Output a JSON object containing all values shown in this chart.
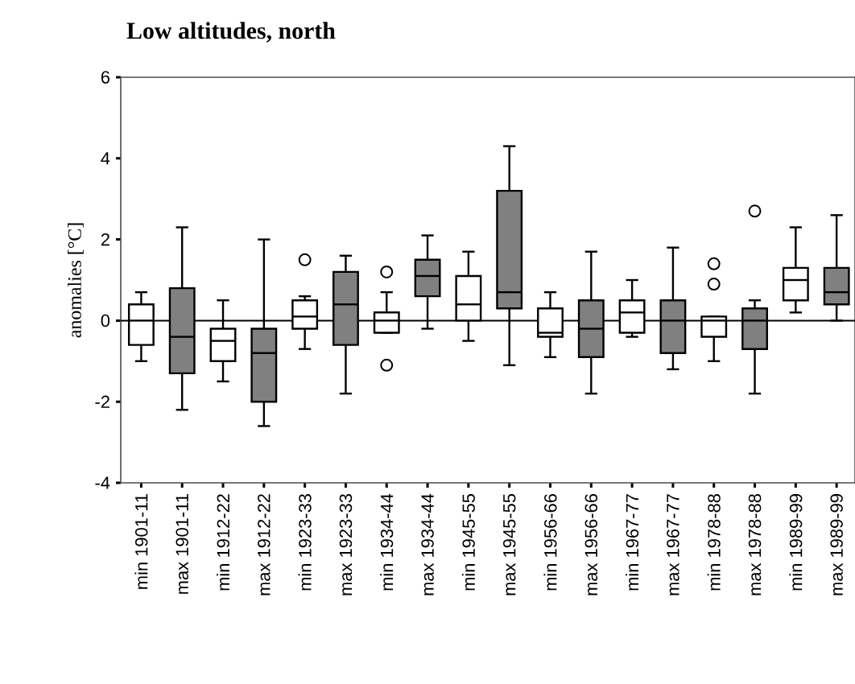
{
  "chart_data": {
    "type": "box",
    "title": "Low altitudes, north",
    "ylabel": "anomalies [°C]",
    "categories": [
      "min 1901-11",
      "max 1901-11",
      "min 1912-22",
      "max 1912-22",
      "min 1923-33",
      "max 1923-33",
      "min 1934-44",
      "max 1934-44",
      "min 1945-55",
      "max 1945-55",
      "min 1956-66",
      "max 1956-66",
      "min 1967-77",
      "max 1967-77",
      "min 1978-88",
      "max 1978-88",
      "min 1989-99",
      "max 1989-99"
    ],
    "colors": [
      "#ffffff",
      "#808080",
      "#ffffff",
      "#808080",
      "#ffffff",
      "#808080",
      "#ffffff",
      "#808080",
      "#ffffff",
      "#808080",
      "#ffffff",
      "#808080",
      "#ffffff",
      "#808080",
      "#ffffff",
      "#808080",
      "#ffffff",
      "#808080"
    ],
    "boxes": [
      {
        "low": -1.0,
        "q1": -0.6,
        "median": 0.0,
        "q3": 0.4,
        "high": 0.7
      },
      {
        "low": -2.2,
        "q1": -1.3,
        "median": -0.4,
        "q3": 0.8,
        "high": 2.3
      },
      {
        "low": -1.5,
        "q1": -1.0,
        "median": -0.5,
        "q3": -0.2,
        "high": 0.5
      },
      {
        "low": -2.6,
        "q1": -2.0,
        "median": -0.8,
        "q3": -0.2,
        "high": 2.0
      },
      {
        "low": -0.7,
        "q1": -0.2,
        "median": 0.1,
        "q3": 0.5,
        "high": 0.6,
        "outliers": [
          1.5
        ]
      },
      {
        "low": -1.8,
        "q1": -0.6,
        "median": 0.4,
        "q3": 1.2,
        "high": 1.6
      },
      {
        "low": -0.3,
        "q1": -0.3,
        "median": 0.0,
        "q3": 0.2,
        "high": 0.7,
        "outliers": [
          1.2,
          -1.1
        ]
      },
      {
        "low": -0.2,
        "q1": 0.6,
        "median": 1.1,
        "q3": 1.5,
        "high": 2.1
      },
      {
        "low": -0.5,
        "q1": 0.0,
        "median": 0.4,
        "q3": 1.1,
        "high": 1.7
      },
      {
        "low": -1.1,
        "q1": 0.3,
        "median": 0.7,
        "q3": 3.2,
        "high": 4.3
      },
      {
        "low": -0.9,
        "q1": -0.4,
        "median": -0.3,
        "q3": 0.3,
        "high": 0.7
      },
      {
        "low": -1.8,
        "q1": -0.9,
        "median": -0.2,
        "q3": 0.5,
        "high": 1.7
      },
      {
        "low": -0.4,
        "q1": -0.3,
        "median": 0.2,
        "q3": 0.5,
        "high": 1.0
      },
      {
        "low": -1.2,
        "q1": -0.8,
        "median": 0.0,
        "q3": 0.5,
        "high": 1.8
      },
      {
        "low": -1.0,
        "q1": -0.4,
        "median": 0.0,
        "q3": 0.1,
        "high": 0.1,
        "outliers": [
          1.4,
          0.9
        ]
      },
      {
        "low": -1.8,
        "q1": -0.7,
        "median": 0.0,
        "q3": 0.3,
        "high": 0.5,
        "outliers": [
          2.7
        ]
      },
      {
        "low": 0.2,
        "q1": 0.5,
        "median": 1.0,
        "q3": 1.3,
        "high": 2.3
      },
      {
        "low": 0.0,
        "q1": 0.4,
        "median": 0.7,
        "q3": 1.3,
        "high": 2.6
      }
    ],
    "ylim": [
      -4,
      6
    ],
    "yticks": [
      -4,
      -2,
      0,
      2,
      4,
      6
    ],
    "ref_lines": [
      {
        "axis": "y",
        "value": 0
      }
    ]
  }
}
